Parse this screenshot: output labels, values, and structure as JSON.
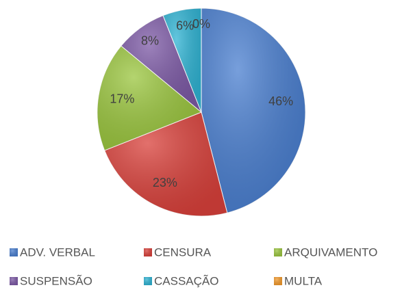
{
  "chart_data": {
    "type": "pie",
    "categories": [
      "ADV. VERBAL",
      "CENSURA",
      "ARQUIVAMENTO",
      "SUSPENSÃO",
      "CASSAÇÃO",
      "MULTA"
    ],
    "values": [
      46,
      23,
      17,
      8,
      6,
      0
    ],
    "value_labels": [
      "46%",
      "23%",
      "17%",
      "8%",
      "6%",
      "0%"
    ],
    "colors": [
      "#4a7fd0",
      "#d9413b",
      "#9bc63f",
      "#7d5aa6",
      "#2fb3d3",
      "#f39a2c"
    ],
    "legend": "bottom"
  }
}
